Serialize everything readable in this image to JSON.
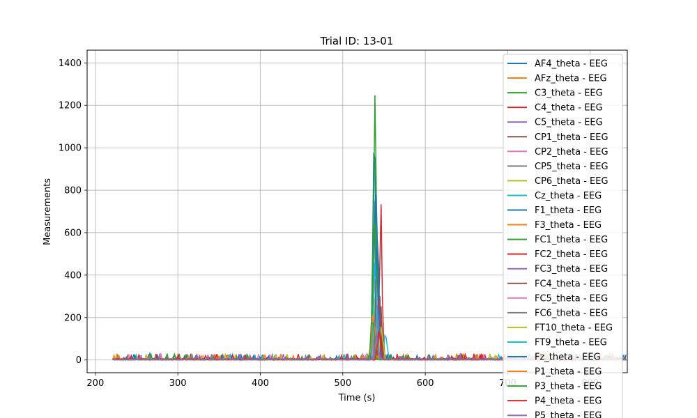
{
  "chart_data": {
    "type": "line",
    "title": "Trial ID: 13-01",
    "xlabel": "Time (s)",
    "ylabel": "Measurements",
    "xlim": [
      190,
      845
    ],
    "ylim": [
      -60,
      1460
    ],
    "xticks": [
      200,
      300,
      400,
      500,
      600,
      700,
      800
    ],
    "yticks": [
      0,
      200,
      400,
      600,
      800,
      1000,
      1200,
      1400
    ],
    "grid": true,
    "legend_position": "right",
    "x_start": 221,
    "x_end": 844,
    "series": [
      {
        "name": "AF4_theta - EEG",
        "color": "#1f77b4",
        "peak_time": 538,
        "peak": 1280
      },
      {
        "name": "AFz_theta - EEG",
        "color": "#ff7f0e",
        "peak_time": 537,
        "peak": 120
      },
      {
        "name": "C3_theta - EEG",
        "color": "#2ca02c",
        "peak_time": 539,
        "peak": 1385
      },
      {
        "name": "C4_theta - EEG",
        "color": "#d62728",
        "peak_time": 546,
        "peak": 815
      },
      {
        "name": "C5_theta - EEG",
        "color": "#9467bd",
        "peak_time": 540,
        "peak": 210
      },
      {
        "name": "CP1_theta - EEG",
        "color": "#8c564b",
        "peak_time": 545,
        "peak": 320
      },
      {
        "name": "CP2_theta - EEG",
        "color": "#e377c2",
        "peak_time": 541,
        "peak": 470
      },
      {
        "name": "CP5_theta - EEG",
        "color": "#7f7f7f",
        "peak_time": 542,
        "peak": 250
      },
      {
        "name": "CP6_theta - EEG",
        "color": "#bcbd22",
        "peak_time": 540,
        "peak": 390
      },
      {
        "name": "Cz_theta - EEG",
        "color": "#17becf",
        "peak_time": 552,
        "peak": 145
      },
      {
        "name": "F1_theta - EEG",
        "color": "#1f77b4",
        "peak_time": 540,
        "peak": 1340
      },
      {
        "name": "F3_theta - EEG",
        "color": "#ff7f0e",
        "peak_time": 539,
        "peak": 415
      },
      {
        "name": "FC1_theta - EEG",
        "color": "#2ca02c",
        "peak_time": 538,
        "peak": 900
      },
      {
        "name": "FC2_theta - EEG",
        "color": "#d62728",
        "peak_time": 544,
        "peak": 380
      },
      {
        "name": "FC3_theta - EEG",
        "color": "#9467bd",
        "peak_time": 541,
        "peak": 300
      },
      {
        "name": "FC4_theta - EEG",
        "color": "#8c564b",
        "peak_time": 546,
        "peak": 280
      },
      {
        "name": "FC5_theta - EEG",
        "color": "#e377c2",
        "peak_time": 540,
        "peak": 230
      },
      {
        "name": "FC6_theta - EEG",
        "color": "#7f7f7f",
        "peak_time": 543,
        "peak": 200
      },
      {
        "name": "FT10_theta - EEG",
        "color": "#bcbd22",
        "peak_time": 547,
        "peak": 200
      },
      {
        "name": "FT9_theta - EEG",
        "color": "#17becf",
        "peak_time": 539,
        "peak": 520
      },
      {
        "name": "Fz_theta - EEG",
        "color": "#1f77b4",
        "peak_time": 542,
        "peak": 710
      },
      {
        "name": "P1_theta - EEG",
        "color": "#ff7f0e",
        "peak_time": 537,
        "peak": 300
      },
      {
        "name": "P3_theta - EEG",
        "color": "#2ca02c",
        "peak_time": 536,
        "peak": 260
      },
      {
        "name": "P4_theta - EEG",
        "color": "#d62728",
        "peak_time": 544,
        "peak": 160
      },
      {
        "name": "P5_theta - EEG",
        "color": "#9467bd",
        "peak_time": 541,
        "peak": 140
      }
    ]
  }
}
